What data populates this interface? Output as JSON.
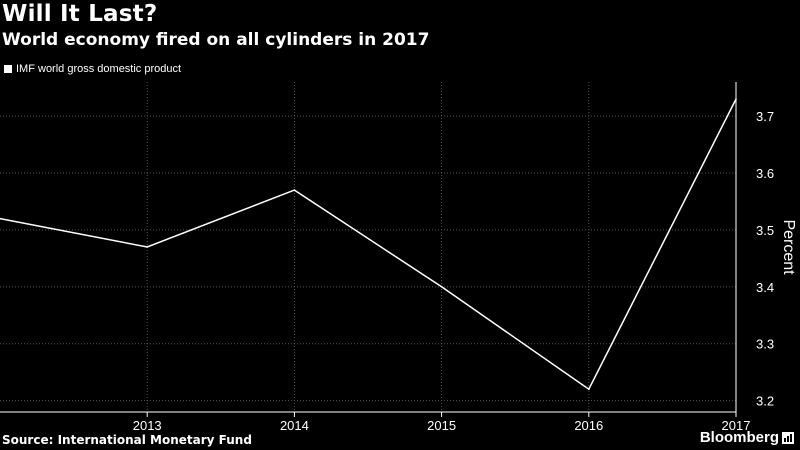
{
  "header": {
    "title": "Will It Last?",
    "subtitle": "World economy fired on all cylinders in 2017"
  },
  "footer": {
    "source": "Source: International Monetary Fund",
    "brand": "Bloomberg"
  },
  "colors": {
    "background": "#000000",
    "line": "#ffffff",
    "grid": "#555555",
    "text": "#ffffff"
  },
  "chart_data": {
    "type": "line",
    "title": "Will It Last?",
    "subtitle": "World economy fired on all cylinders in 2017",
    "xlabel": "",
    "ylabel": "Percent",
    "x": [
      2012,
      2013,
      2014,
      2015,
      2016,
      2017
    ],
    "xticks": [
      "2013",
      "2014",
      "2015",
      "2016",
      "2017"
    ],
    "yticks": [
      "3.2",
      "3.3",
      "3.4",
      "3.5",
      "3.6",
      "3.7"
    ],
    "xlim": [
      2012,
      2017
    ],
    "ylim": [
      3.18,
      3.76
    ],
    "series": [
      {
        "name": "IMF world gross domestic product",
        "values": [
          3.52,
          3.47,
          3.57,
          3.4,
          3.22,
          3.73
        ]
      }
    ],
    "grid": true,
    "legend_position": "top-left",
    "source": "Source: International Monetary Fund"
  }
}
